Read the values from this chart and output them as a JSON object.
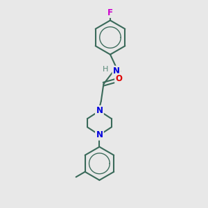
{
  "bg_color": "#e8e8e8",
  "bond_color": "#3a6a5a",
  "N_color": "#0000dd",
  "O_color": "#dd0000",
  "F_color": "#cc00cc",
  "line_width": 1.5,
  "font_size": 8.5,
  "fig_size": [
    3.0,
    3.0
  ],
  "dpi": 100,
  "xlim": [
    0,
    10
  ],
  "ylim": [
    0,
    10
  ]
}
